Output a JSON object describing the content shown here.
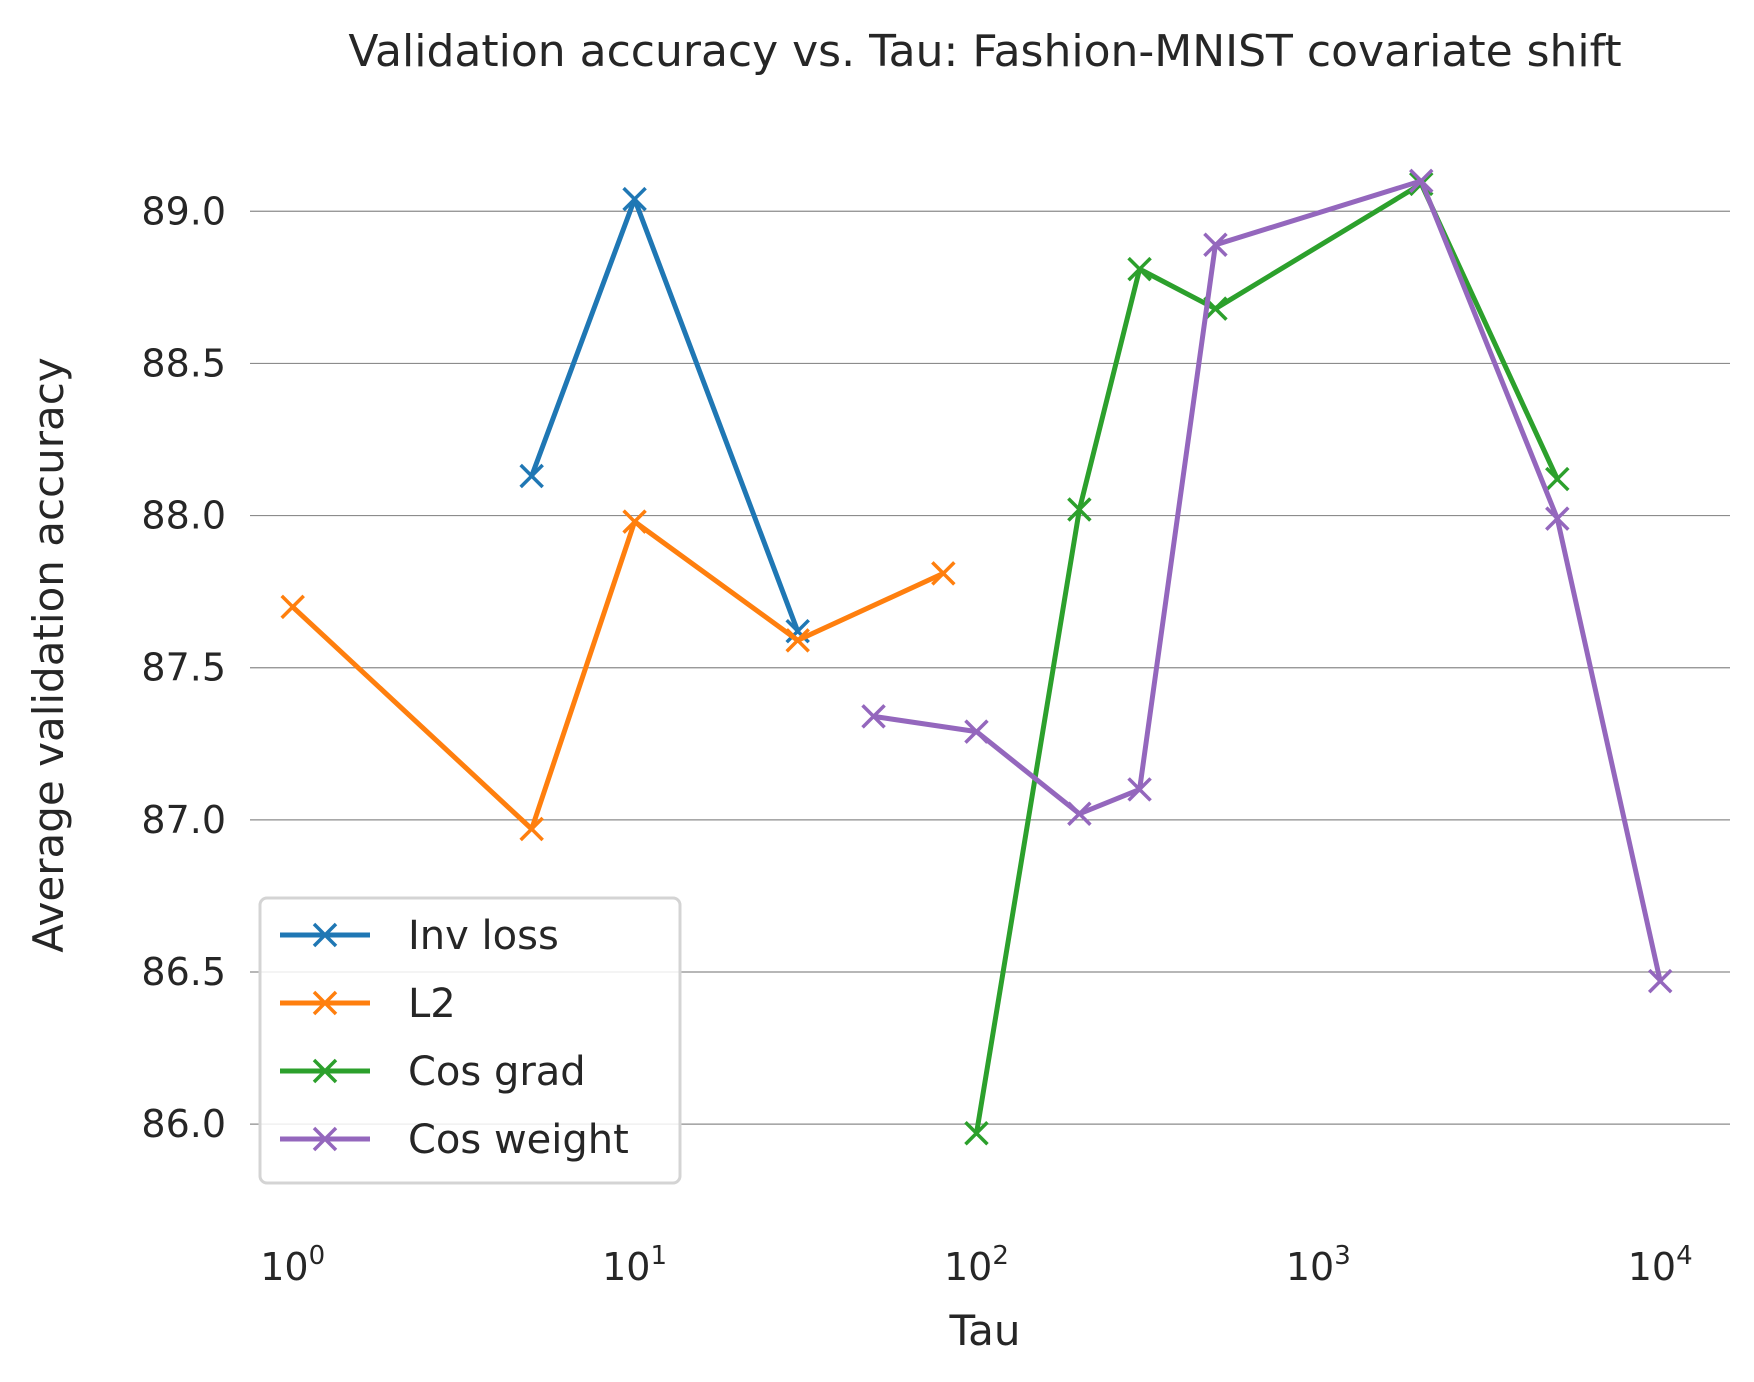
{
  "chart_data": {
    "type": "line",
    "title": "Validation accuracy vs. Tau: Fashion-MNIST covariate shift",
    "xlabel": "Tau",
    "ylabel": "Average validation accuracy",
    "xscale": "log",
    "xlim": [
      0.75,
      16000
    ],
    "ylim": [
      85.8,
      89.3
    ],
    "x_ticks": [
      {
        "value": 1,
        "base": "10",
        "exp": "0"
      },
      {
        "value": 10,
        "base": "10",
        "exp": "1"
      },
      {
        "value": 100,
        "base": "10",
        "exp": "2"
      },
      {
        "value": 1000,
        "base": "10",
        "exp": "3"
      },
      {
        "value": 10000,
        "base": "10",
        "exp": "4"
      }
    ],
    "y_ticks": [
      {
        "value": 86.0,
        "label": "86.0"
      },
      {
        "value": 86.5,
        "label": "86.5"
      },
      {
        "value": 87.0,
        "label": "87.0"
      },
      {
        "value": 87.5,
        "label": "87.5"
      },
      {
        "value": 88.0,
        "label": "88.0"
      },
      {
        "value": 88.5,
        "label": "88.5"
      },
      {
        "value": 89.0,
        "label": "89.0"
      }
    ],
    "grid": "horizontal",
    "legend_position": "lower-left",
    "marker": "x",
    "series": [
      {
        "name": "Inv loss",
        "color": "#1f77b4",
        "points": [
          [
            5,
            88.13
          ],
          [
            10,
            89.04
          ],
          [
            30,
            87.62
          ]
        ]
      },
      {
        "name": "L2",
        "color": "#ff7f0e",
        "points": [
          [
            1,
            87.7
          ],
          [
            5,
            86.97
          ],
          [
            10,
            87.98
          ],
          [
            30,
            87.59
          ],
          [
            80,
            87.81
          ]
        ]
      },
      {
        "name": "Cos grad",
        "color": "#2ca02c",
        "points": [
          [
            100,
            85.97
          ],
          [
            200,
            88.02
          ],
          [
            300,
            88.81
          ],
          [
            500,
            88.68
          ],
          [
            2000,
            89.09
          ],
          [
            5000,
            88.12
          ]
        ]
      },
      {
        "name": "Cos weight",
        "color": "#9467bd",
        "points": [
          [
            50,
            87.34
          ],
          [
            100,
            87.29
          ],
          [
            200,
            87.02
          ],
          [
            300,
            87.1
          ],
          [
            500,
            88.89
          ],
          [
            2000,
            89.1
          ],
          [
            5000,
            87.99
          ],
          [
            10000,
            86.47
          ]
        ]
      }
    ]
  }
}
